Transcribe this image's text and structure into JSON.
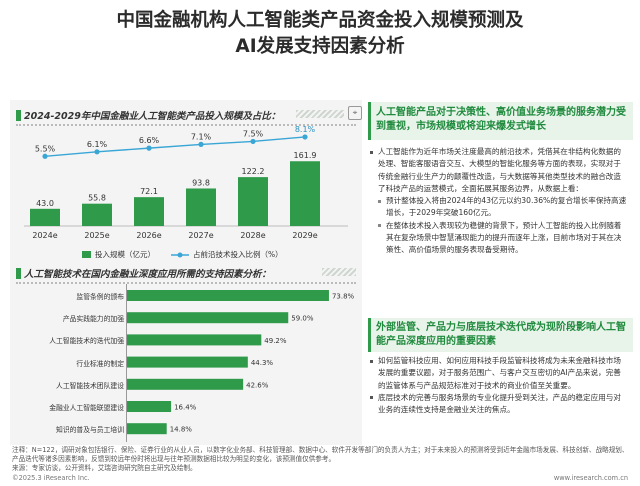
{
  "title_line1": "中国金融机构人工智能类产品资金投入规模预测及",
  "title_line2": "AI发展支持因素分析",
  "chart_data": [
    {
      "type": "bar+line",
      "title": "2024-2029年中国金融业人工智能类产品投入规模及占比：",
      "categories": [
        "2024e",
        "2025e",
        "2026e",
        "2027e",
        "2028e",
        "2029e"
      ],
      "series": [
        {
          "name": "投入规模（亿元）",
          "type": "bar",
          "values": [
            43.0,
            55.8,
            72.1,
            93.8,
            122.2,
            161.9
          ],
          "labels": [
            "43.0",
            "55.8",
            "72.1",
            "93.8",
            "122.2",
            "161.9"
          ]
        },
        {
          "name": "占前沿技术投入比例（%）",
          "type": "line",
          "values": [
            5.5,
            6.1,
            6.6,
            7.1,
            7.5,
            8.1
          ],
          "labels": [
            "5.5%",
            "6.1%",
            "6.6%",
            "7.1%",
            "7.5%",
            "8.1%"
          ]
        }
      ],
      "legend_bar": "投入规模（亿元）",
      "legend_line": "占前沿技术投入比例（%）"
    },
    {
      "type": "bar",
      "orientation": "horizontal",
      "title": "人工智能技术在国内金融业深度应用所需的支持因素分析：",
      "categories": [
        "监管条例的颁布",
        "产品实践能力的加强",
        "人工智能技术的迭代加强",
        "行业标准的制定",
        "人工智能技术团队建设",
        "金融业人工智能联盟建设",
        "知识的普及与员工培训"
      ],
      "values": [
        73.8,
        59.0,
        49.2,
        44.3,
        42.6,
        16.4,
        14.8
      ],
      "labels": [
        "73.8%",
        "59.0%",
        "49.2%",
        "44.3%",
        "42.6%",
        "16.4%",
        "14.8%"
      ],
      "xlim": [
        0,
        80
      ]
    }
  ],
  "right": {
    "head1": "人工智能产品对于决策性、高价值业务场景的服务潜力受到重视，市场规模或将迎来爆发式增长",
    "p1": "人工智能作为近年市场关注度最高的前沿技术，凭借其在非结构化数据的处理、智能客服语音交互、大模型的智能化服务等方面的表现，实现对于传统金融行业生产力的颠覆性改造，与大数据等其他类型技术的融合改造了科技产品的运营模式，全面拓展其服务边界，从数据上看：",
    "s1": "预计整体投入将由2024年的43亿元以约30.36%的复合增长率保持高速增长，于2029年突破160亿元。",
    "s2": "在整体技术投入表现较为稳健的背景下，预计人工智能的投入比例随着其在复杂场景中智慧涌现能力的提升而逐年上涨，目前市场对于其在决策性、高价值场景的服务表现备受期待。",
    "head2": "外部监管、产品力与底层技术迭代成为现阶段影响人工智能产品深度应用的重要因素",
    "p2": "如何监管科技应用、如何应用科技手段监管科技将成为未来金融科技市场发展的重要议题，对于服务范围广、与客户交互密切的AI产品来说，完善的监管体系与产品规范标准对于技术的商业价值至关重要。",
    "p3": "底层技术的完善与服务场景的专业化提升受到关注，产品的稳定应用与对业务的连续性支持是金融业关注的焦点。"
  },
  "footnote": "注释：N=122，调研对象包括银行、保险、证券行业的从业人员，以数字化业务部、科技管理部、数据中心、软件开发等部门的负责人为主；对于未来投入的预测将受到近年金融市场发展、科技创新、战略规划、产品迭代等诸多因素影响，反馈到较远年份时将出现与往年预测数据相比较为明显的变化，该预测值仅供参考。",
  "source": "来源：专家访谈，公开资料，艾瑞咨询研究院自主研究及绘制。",
  "copyright": "©2025.3 iResearch Inc.",
  "website": "www.iresearch.com.cn"
}
